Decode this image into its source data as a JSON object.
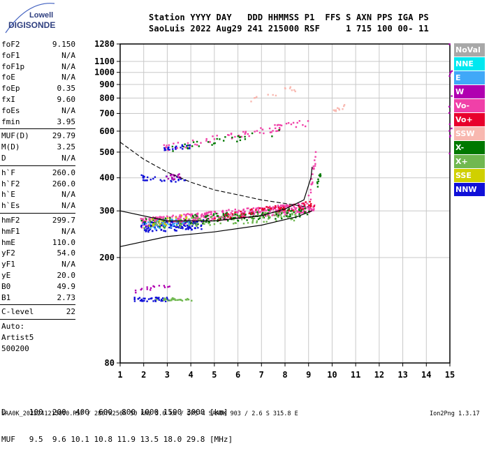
{
  "logo": {
    "line1": "Lowell",
    "line2": "DIGISONDE"
  },
  "header": {
    "line1": "Station YYYY DAY   DDD HHMMSS P1  FFS S AXN PPS IGA PS",
    "line2": "SaoLuis 2022 Aug29 241 215000 RSF     1 715 100 00- 11"
  },
  "params": [
    {
      "label": "foF2",
      "value": "9.150"
    },
    {
      "label": "foF1",
      "value": "N/A"
    },
    {
      "label": "foF1p",
      "value": "N/A"
    },
    {
      "label": "foE",
      "value": "N/A"
    },
    {
      "label": "foEp",
      "value": "0.35"
    },
    {
      "label": "fxI",
      "value": "9.60"
    },
    {
      "label": "foEs",
      "value": "N/A"
    },
    {
      "label": "fmin",
      "value": "3.95"
    },
    {
      "sep": true
    },
    {
      "label": "MUF(D)",
      "value": "29.79"
    },
    {
      "label": "M(D)",
      "value": "3.25"
    },
    {
      "label": "D",
      "value": "N/A"
    },
    {
      "sep": true
    },
    {
      "label": "h`F",
      "value": "260.0"
    },
    {
      "label": "h`F2",
      "value": "260.0"
    },
    {
      "label": "h`E",
      "value": "N/A"
    },
    {
      "label": "h`Es",
      "value": "N/A"
    },
    {
      "sep": true
    },
    {
      "label": "hmF2",
      "value": "299.7"
    },
    {
      "label": "hmF1",
      "value": "N/A"
    },
    {
      "label": "hmE",
      "value": "110.0"
    },
    {
      "label": "yF2",
      "value": "54.0"
    },
    {
      "label": "yF1",
      "value": "N/A"
    },
    {
      "label": "yE",
      "value": "20.0"
    },
    {
      "label": "B0",
      "value": "49.9"
    },
    {
      "label": "B1",
      "value": "2.73"
    },
    {
      "sep": true
    },
    {
      "label": "C-level",
      "value": "22"
    },
    {
      "sep": true
    },
    {
      "text": "Auto:"
    },
    {
      "text": "Artist5"
    },
    {
      "text": "500200"
    }
  ],
  "legend": [
    {
      "label": "NoVal",
      "color": "#a8a8a8"
    },
    {
      "label": "NNE",
      "color": "#00e8f0"
    },
    {
      "label": "E",
      "color": "#40a8f8"
    },
    {
      "label": "W",
      "color": "#b000b0"
    },
    {
      "label": "Vo-",
      "color": "#f040a8"
    },
    {
      "label": "Vo+",
      "color": "#e8002c"
    },
    {
      "label": "SSW",
      "color": "#f8b8b0"
    },
    {
      "label": "X-",
      "color": "#007800"
    },
    {
      "label": "X+",
      "color": "#70b850"
    },
    {
      "label": "SSE",
      "color": "#d0d000"
    },
    {
      "label": "NNW",
      "color": "#1010d8"
    }
  ],
  "bottom": {
    "line1": "D     100  200  400  600  800 1000 1500 3000 [km]",
    "line2": "MUF   9.5  9.6 10.1 10.8 11.9 13.5 18.0 29.8 [MHz]"
  },
  "footer": {
    "left": "SAA0K_2022241215000.RSF / 280fx256h 50 kHz 5.0 km / DPS-4 SAA0K 903 / 2.6 S 315.8 E",
    "right": "Ion2Png 1.3.17"
  },
  "chart_data": {
    "type": "scatter",
    "x_ticks": [
      "1",
      "2",
      "3",
      "4",
      "5",
      "6",
      "7",
      "8",
      "9",
      "10",
      "11",
      "12",
      "13",
      "14",
      "15"
    ],
    "y_ticks": [
      "80",
      "200",
      "300",
      "400",
      "500",
      "600",
      "700",
      "800",
      "900",
      "1000",
      "1100",
      "1280"
    ],
    "xlim": [
      1,
      15
    ],
    "ylim": [
      80,
      1280
    ],
    "yscale": "log",
    "grid": true,
    "clusters": [
      {
        "color": "#f040a8",
        "xr": [
          1.9,
          9.2
        ],
        "y0": 272,
        "y1": 312,
        "n": 480,
        "spread": 14
      },
      {
        "color": "#007800",
        "xr": [
          1.9,
          9.0
        ],
        "y0": 270,
        "y1": 300,
        "n": 160,
        "spread": 14
      },
      {
        "color": "#1010d8",
        "xr": [
          1.9,
          4.5
        ],
        "y0": 262,
        "y1": 268,
        "n": 120,
        "spread": 14
      },
      {
        "color": "#70b850",
        "xr": [
          1.9,
          8.5
        ],
        "y0": 268,
        "y1": 290,
        "n": 100,
        "spread": 14
      },
      {
        "color": "#e8002c",
        "xr": [
          5.0,
          9.2
        ],
        "y0": 285,
        "y1": 320,
        "n": 60,
        "spread": 10
      },
      {
        "color": "#40a8f8",
        "xr": [
          1.9,
          4.0
        ],
        "y0": 265,
        "y1": 275,
        "n": 40,
        "spread": 12
      },
      {
        "color": "#d0d000",
        "xr": [
          2.0,
          4.0
        ],
        "y0": 270,
        "y1": 285,
        "n": 20,
        "spread": 12
      },
      {
        "color": "#f040a8",
        "xr": [
          2.8,
          9.0
        ],
        "y0": 520,
        "y1": 650,
        "n": 70,
        "spread": 10
      },
      {
        "color": "#007800",
        "xr": [
          3.0,
          8.0
        ],
        "y0": 520,
        "y1": 600,
        "n": 30,
        "spread": 10
      },
      {
        "color": "#1010d8",
        "xr": [
          2.8,
          4.0
        ],
        "y0": 520,
        "y1": 530,
        "n": 20,
        "spread": 6
      },
      {
        "color": "#f8b8b0",
        "xr": [
          6.5,
          8.5
        ],
        "y0": 790,
        "y1": 880,
        "n": 14,
        "spread": 10
      },
      {
        "color": "#1010d8",
        "xr": [
          1.7,
          3.8
        ],
        "y0": 405,
        "y1": 395,
        "n": 30,
        "spread": 8
      },
      {
        "color": "#b000b0",
        "xr": [
          2.9,
          3.5
        ],
        "y0": 400,
        "y1": 410,
        "n": 20,
        "spread": 8
      },
      {
        "color": "#1010d8",
        "xr": [
          1.5,
          3.0
        ],
        "y0": 140,
        "y1": 140,
        "n": 40,
        "spread": 6
      },
      {
        "color": "#70b850",
        "xr": [
          2.5,
          4.0
        ],
        "y0": 140,
        "y1": 140,
        "n": 25,
        "spread": 4
      },
      {
        "color": "#b000b0",
        "xr": [
          1.6,
          3.2
        ],
        "y0": 150,
        "y1": 160,
        "n": 15,
        "spread": 6
      },
      {
        "color": "#f040a8",
        "xr": [
          9.0,
          9.3
        ],
        "y0": 330,
        "y1": 500,
        "n": 20,
        "spread": 10
      },
      {
        "color": "#007800",
        "xr": [
          9.3,
          9.5
        ],
        "y0": 370,
        "y1": 420,
        "n": 10,
        "spread": 6
      },
      {
        "color": "#f8b8b0",
        "xr": [
          10.0,
          10.6
        ],
        "y0": 710,
        "y1": 760,
        "n": 10,
        "spread": 6
      },
      {
        "color": "#b000b0",
        "xr": [
          15.0,
          15.0
        ],
        "y0": 450,
        "y1": 1250,
        "n": 14,
        "spread": 10
      }
    ],
    "profile_upper": [
      [
        1,
        300
      ],
      [
        3,
        275
      ],
      [
        5,
        275
      ],
      [
        7,
        288
      ],
      [
        8,
        305
      ],
      [
        8.8,
        330
      ],
      [
        9.1,
        400
      ],
      [
        9.15,
        440
      ]
    ],
    "profile_lower": [
      [
        1,
        220
      ],
      [
        3,
        240
      ],
      [
        5,
        250
      ],
      [
        7,
        265
      ],
      [
        8.5,
        285
      ],
      [
        9.15,
        300
      ]
    ],
    "dashed_curve": [
      [
        1,
        545
      ],
      [
        2,
        470
      ],
      [
        3,
        420
      ],
      [
        4,
        385
      ],
      [
        5,
        360
      ],
      [
        6,
        345
      ],
      [
        7,
        330
      ],
      [
        8,
        320
      ],
      [
        9,
        310
      ]
    ]
  }
}
